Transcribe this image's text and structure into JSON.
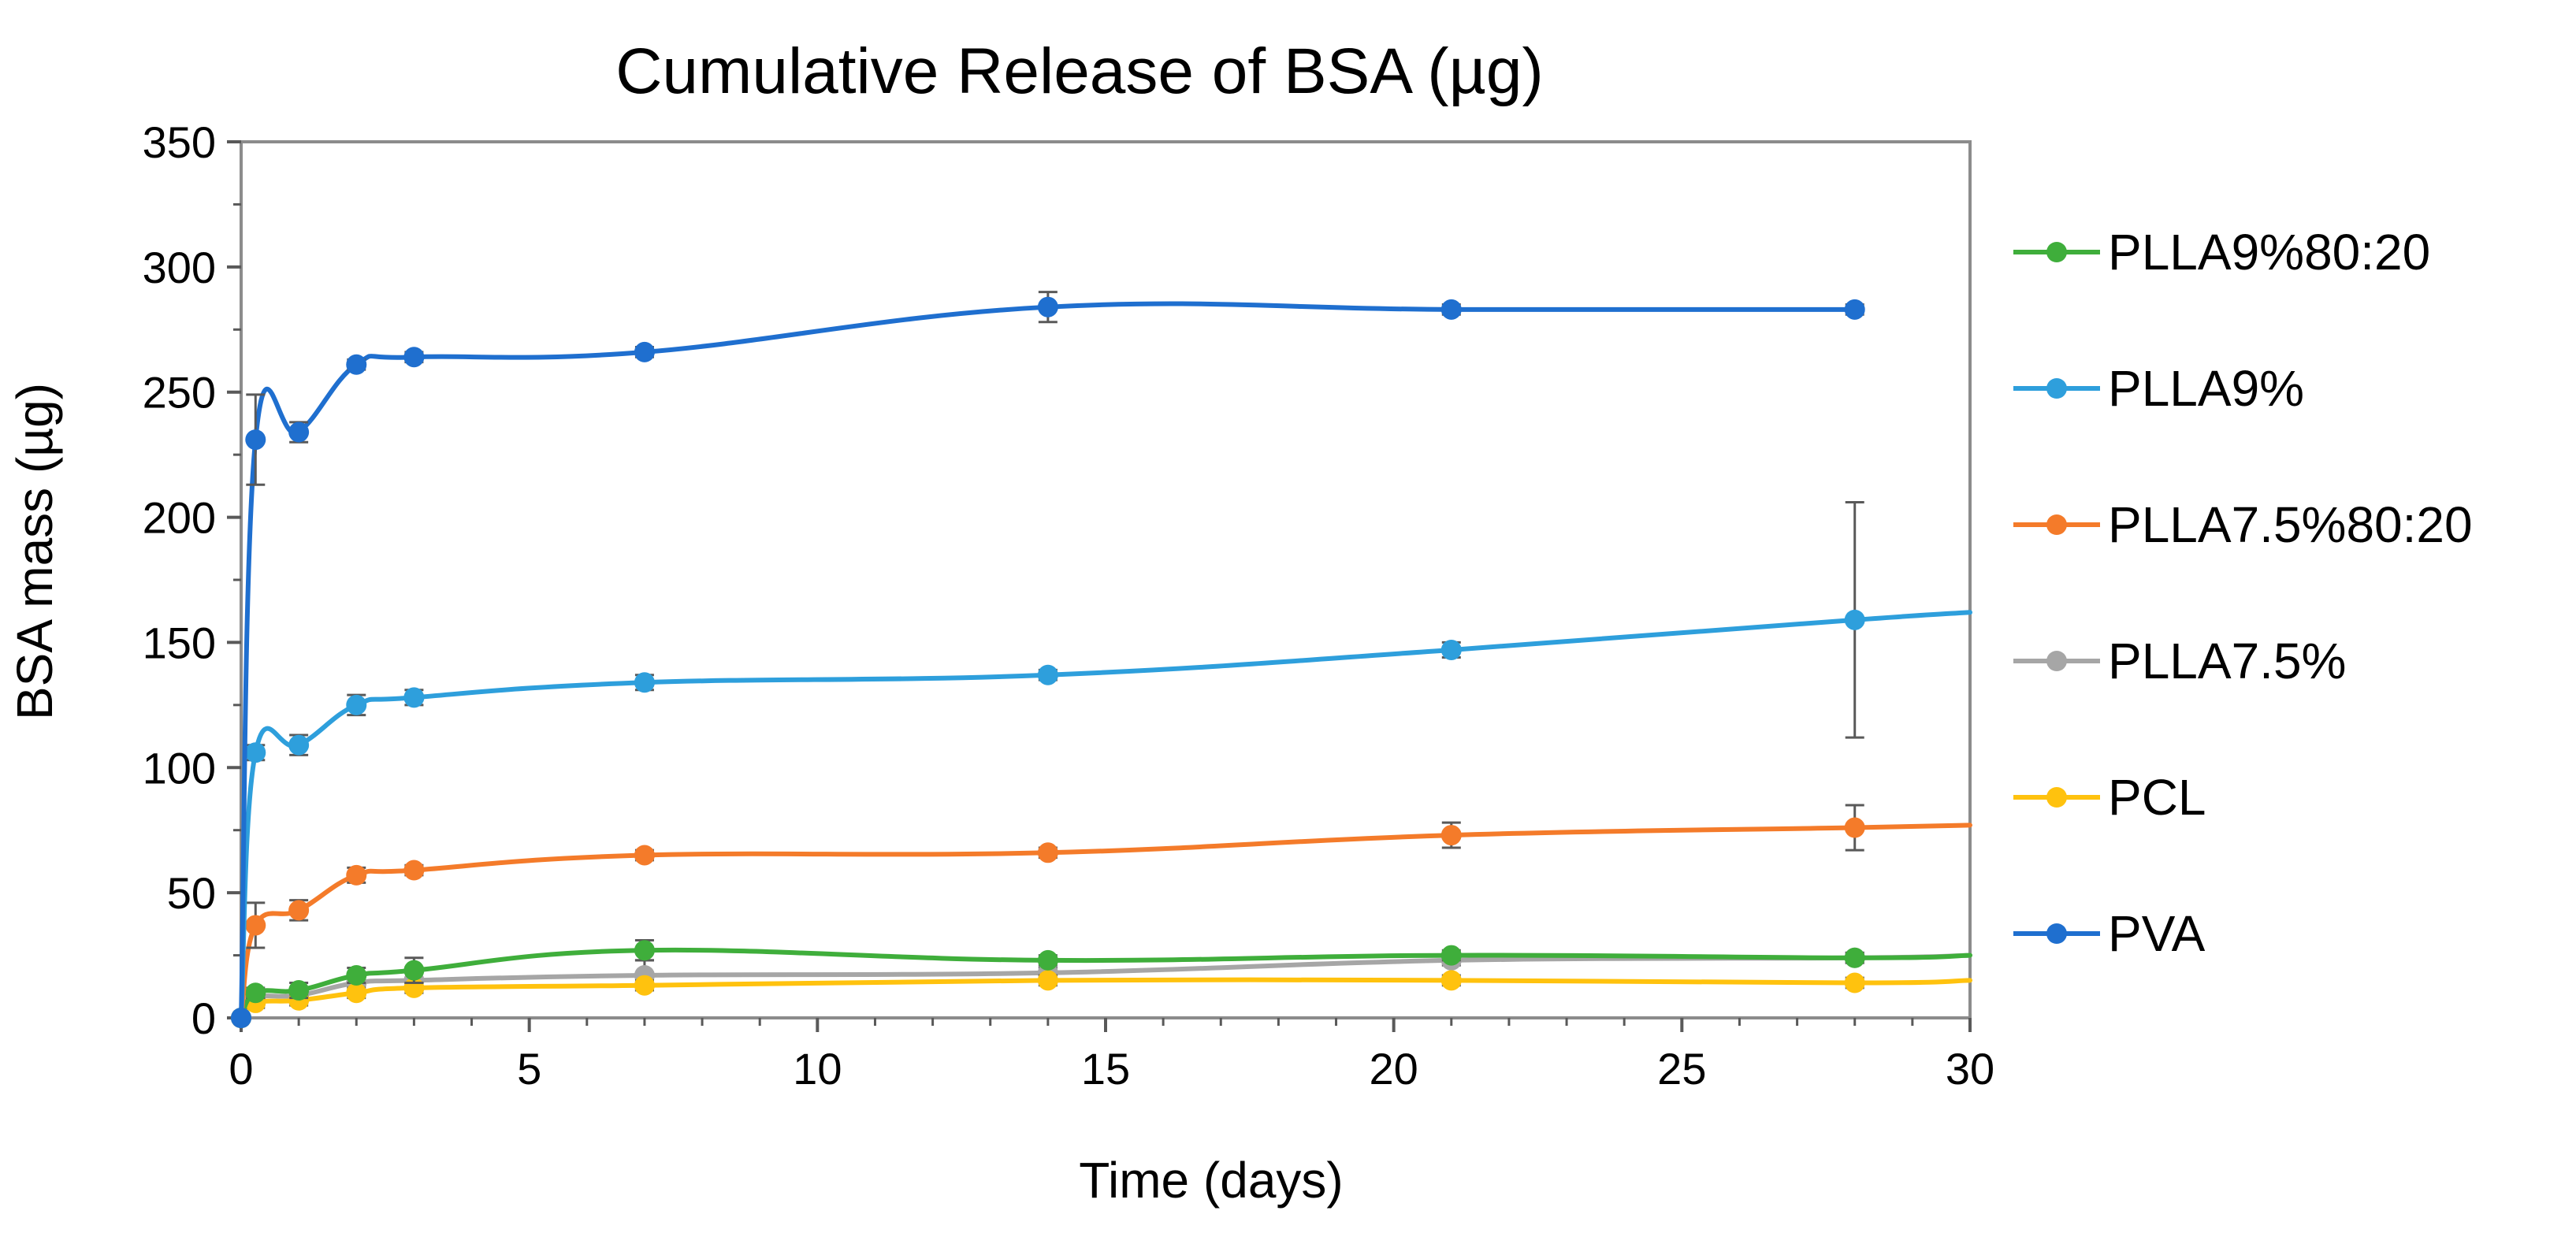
{
  "chart_data": {
    "type": "line",
    "title": "Cumulative Release of BSA (µg)",
    "xlabel": "Time (days)",
    "ylabel": "BSA mass (µg)",
    "xlim": [
      0,
      30
    ],
    "ylim": [
      0,
      350
    ],
    "x_ticks": [
      "0",
      "5",
      "10",
      "15",
      "20",
      "25",
      "30"
    ],
    "y_ticks": [
      "0",
      "50",
      "100",
      "150",
      "200",
      "250",
      "300",
      "350"
    ],
    "grid": false,
    "legend_position": "right",
    "series": [
      {
        "name": "PLLA9%80:20",
        "color": "#3fae3b",
        "x": [
          0,
          0.25,
          1,
          2,
          3,
          7,
          14,
          21,
          28
        ],
        "y": [
          0,
          10,
          11,
          17,
          19,
          27,
          23,
          25,
          24
        ],
        "err": [
          0,
          2,
          3,
          3,
          5,
          4,
          2,
          2,
          2
        ],
        "tail_to": 25
      },
      {
        "name": "PLLA9%",
        "color": "#2e9fdc",
        "x": [
          0,
          0.25,
          1,
          2,
          3,
          7,
          14,
          21,
          28
        ],
        "y": [
          0,
          106,
          109,
          125,
          128,
          134,
          137,
          147,
          159
        ],
        "err": [
          0,
          3,
          4,
          4,
          3,
          3,
          2,
          3,
          47
        ],
        "tail_to": 162
      },
      {
        "name": "PLLA7.5%80:20",
        "color": "#f47b2a",
        "x": [
          0,
          0.25,
          1,
          2,
          3,
          7,
          14,
          21,
          28
        ],
        "y": [
          0,
          37,
          43,
          57,
          59,
          65,
          66,
          73,
          76
        ],
        "err": [
          0,
          9,
          4,
          3,
          2,
          2,
          2,
          5,
          9
        ],
        "tail_to": 77
      },
      {
        "name": "PLLA7.5%",
        "color": "#a6a6a6",
        "x": [
          0,
          0.25,
          1,
          2,
          3,
          7,
          14,
          21,
          28
        ],
        "y": [
          0,
          8,
          9,
          14,
          15,
          17,
          18,
          23,
          24
        ],
        "err": [
          0,
          2,
          2,
          3,
          3,
          6,
          2,
          2,
          2
        ],
        "tail_to": 25
      },
      {
        "name": "PCL",
        "color": "#ffc20e",
        "x": [
          0,
          0.25,
          1,
          2,
          3,
          7,
          14,
          21,
          28
        ],
        "y": [
          0,
          6,
          7,
          10,
          12,
          13,
          15,
          15,
          14
        ],
        "err": [
          0,
          2,
          2,
          2,
          2,
          2,
          2,
          2,
          2
        ],
        "tail_to": 15
      },
      {
        "name": "PVA",
        "color": "#1f6fcf",
        "x": [
          0,
          0.25,
          1,
          2,
          3,
          7,
          14,
          21,
          28
        ],
        "y": [
          0,
          231,
          234,
          261,
          264,
          266,
          284,
          283,
          283
        ],
        "err": [
          0,
          18,
          4,
          2,
          2,
          2,
          6,
          2,
          2
        ],
        "tail_to": null
      }
    ]
  }
}
